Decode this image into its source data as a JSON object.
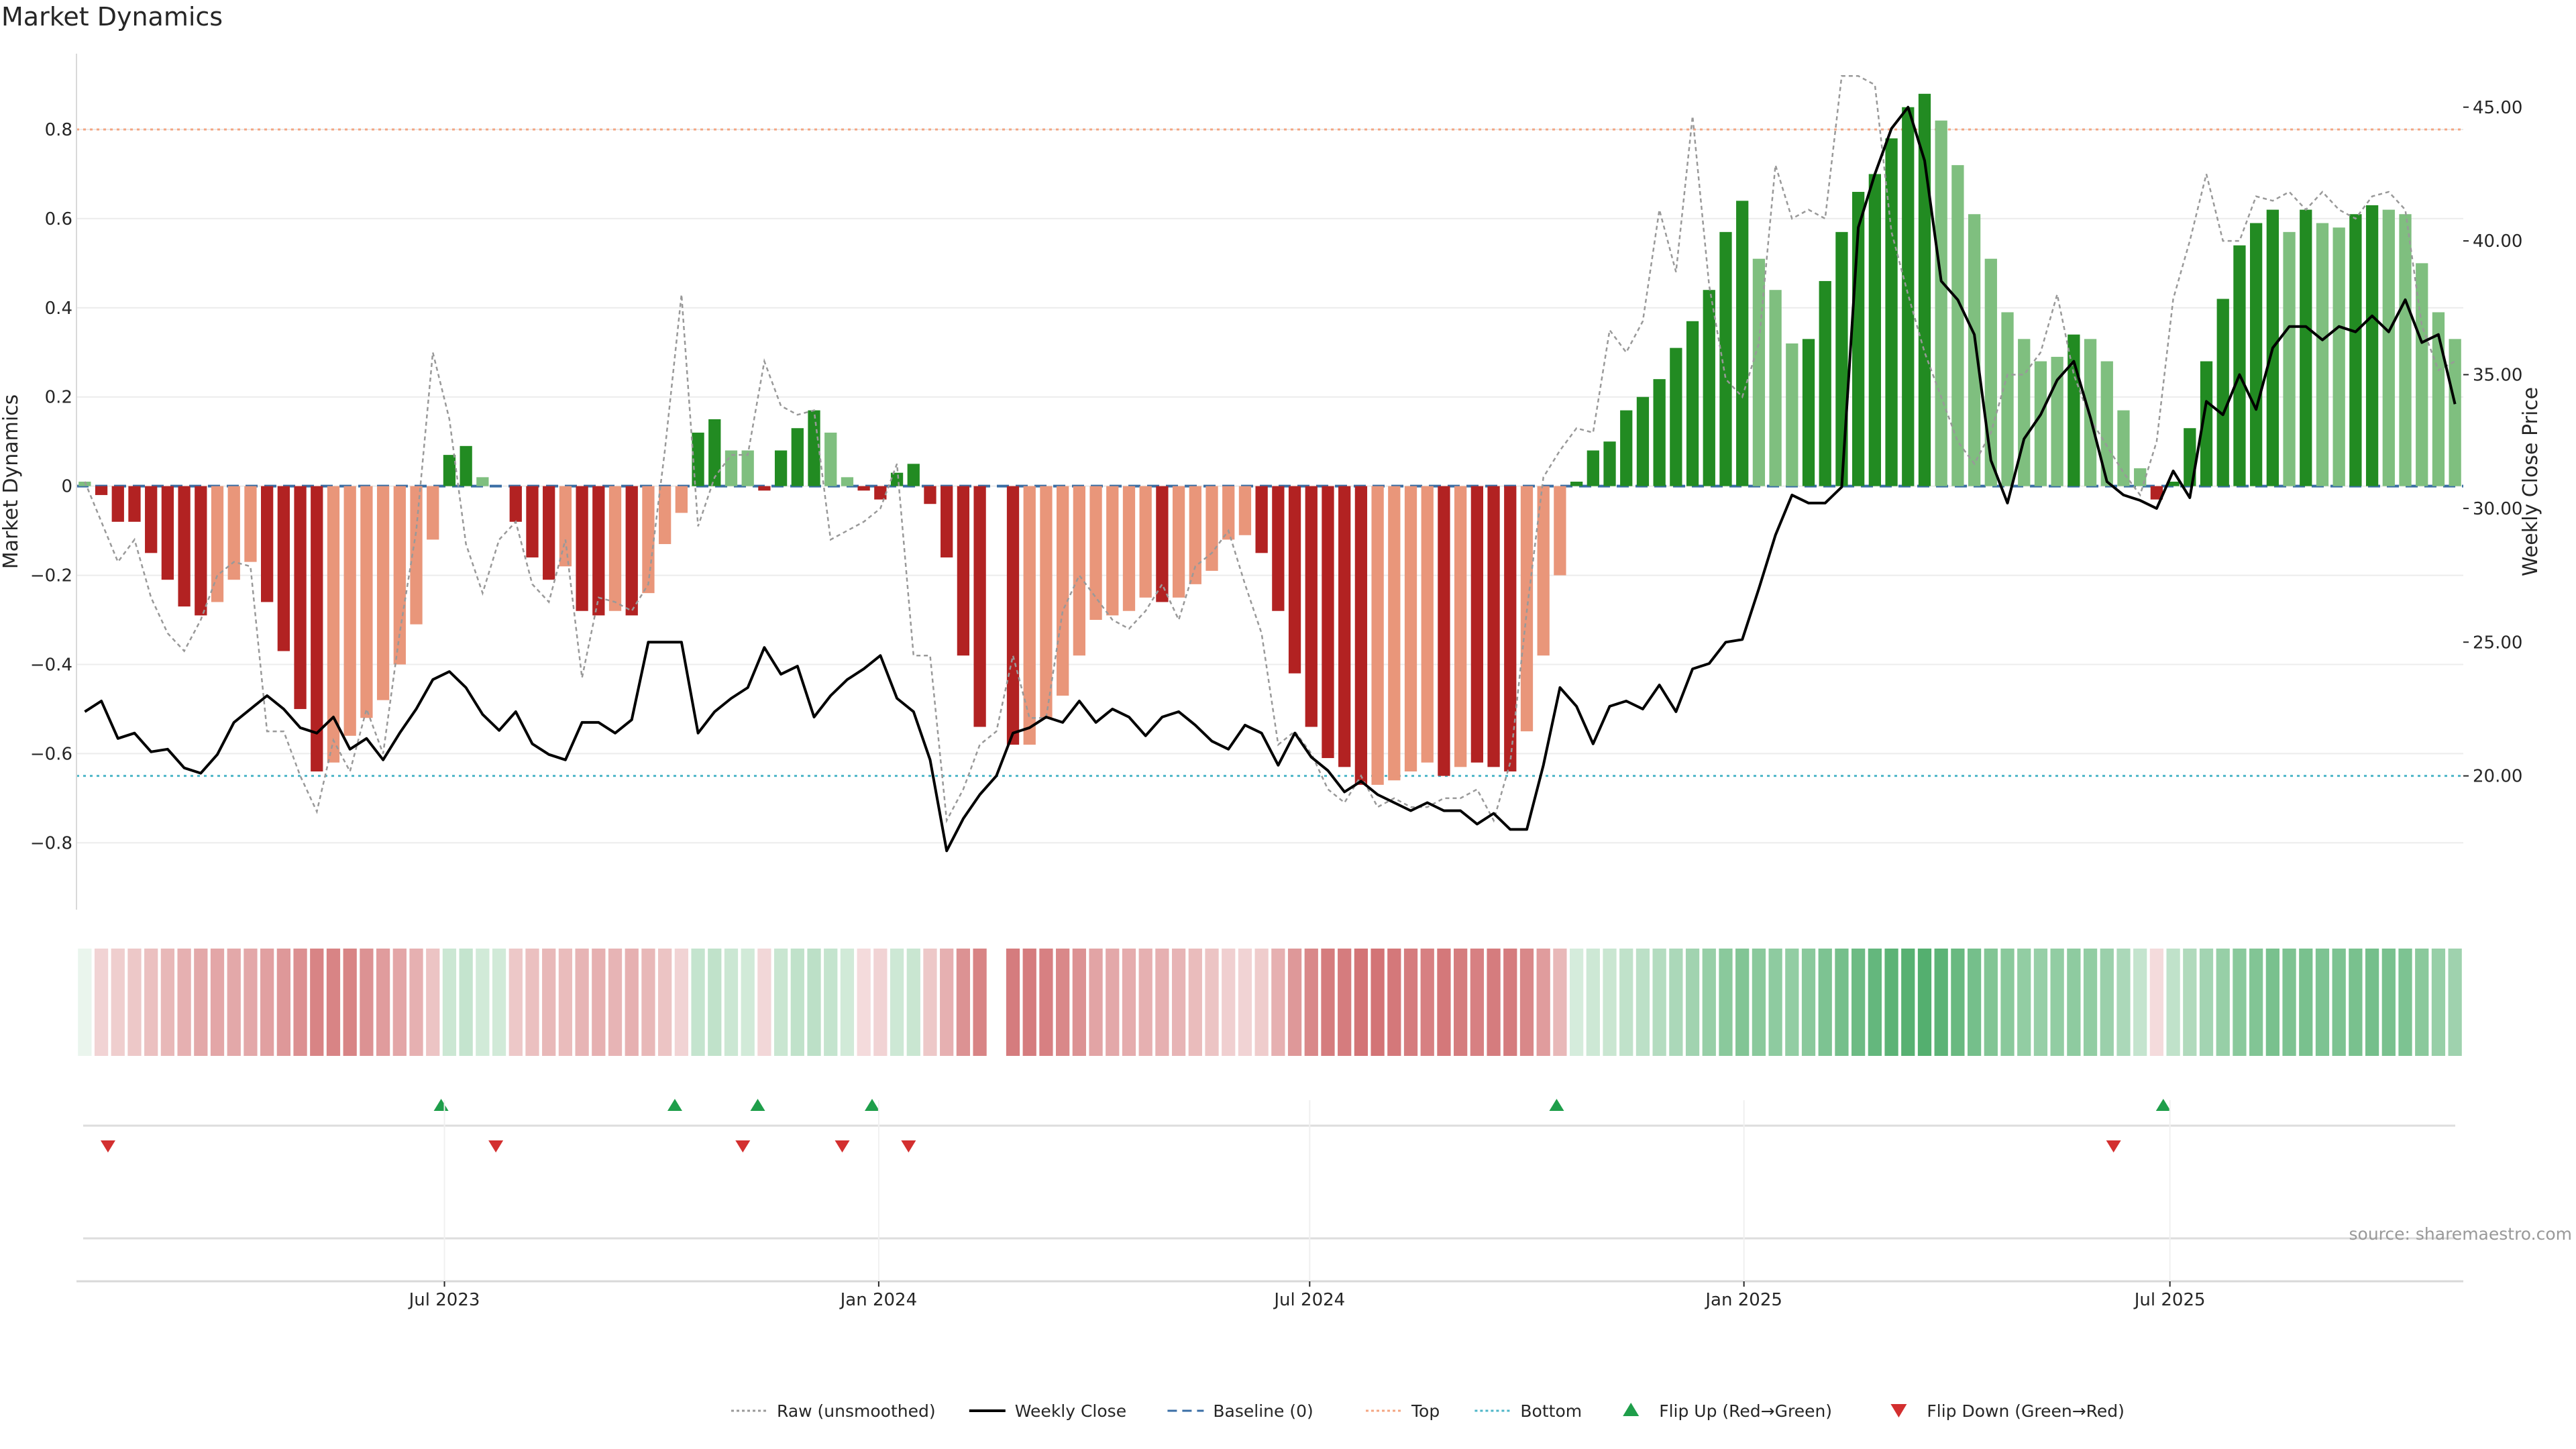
{
  "chart_data": {
    "type": "bar+line",
    "title": "Market Dynamics",
    "ylabel_left": "Market Dynamics",
    "ylabel_right": "Weekly Close Price",
    "source": "source: sharemaestro.com",
    "ylim_left": [
      -0.95,
      0.97
    ],
    "ylim_right": [
      15.0,
      47.0
    ],
    "yticks_left": [
      {
        "v": 0.8,
        "label": "0.8"
      },
      {
        "v": 0.6,
        "label": "0.6"
      },
      {
        "v": 0.4,
        "label": "0.4"
      },
      {
        "v": 0.2,
        "label": "0.2"
      },
      {
        "v": 0,
        "label": "0"
      },
      {
        "v": -0.2,
        "label": "−0.2"
      },
      {
        "v": -0.4,
        "label": "−0.4"
      },
      {
        "v": -0.6,
        "label": "−0.6"
      },
      {
        "v": -0.8,
        "label": "−0.8"
      }
    ],
    "yticks_right": [
      {
        "v": 45,
        "label": "45.00"
      },
      {
        "v": 40,
        "label": "40.00"
      },
      {
        "v": 35,
        "label": "35.00"
      },
      {
        "v": 30,
        "label": "30.00"
      },
      {
        "v": 25,
        "label": "25.00"
      },
      {
        "v": 20,
        "label": "20.00"
      }
    ],
    "xticks": [
      {
        "week": 21.7,
        "label": "Jul 2023"
      },
      {
        "week": 47.9,
        "label": "Jan 2024"
      },
      {
        "week": 73.9,
        "label": "Jul 2024"
      },
      {
        "week": 100.1,
        "label": "Jan 2025"
      },
      {
        "week": 125.8,
        "label": "Jul 2025"
      }
    ],
    "top_line": 0.8,
    "bottom_line": -0.65,
    "baseline": 0,
    "colors": {
      "bull_strong": "#228B22",
      "bull_weak": "#7FBF7F",
      "bear_strong": "#B22222",
      "bear_weak": "#E9967A",
      "raw": "#999999",
      "close": "#000000",
      "baseline": "#3A6EA5",
      "top": "#F4A582",
      "bottom": "#4DB6C8",
      "flip_up": "#1E9E4A",
      "flip_down": "#D32F2F"
    },
    "bars": [
      0.01,
      -0.02,
      -0.08,
      -0.08,
      -0.15,
      -0.21,
      -0.27,
      -0.29,
      -0.26,
      -0.21,
      -0.17,
      -0.26,
      -0.37,
      -0.5,
      -0.64,
      -0.62,
      -0.56,
      -0.52,
      -0.48,
      -0.4,
      -0.31,
      -0.12,
      0.07,
      0.09,
      0.02,
      0.0,
      -0.08,
      -0.16,
      -0.21,
      -0.18,
      -0.28,
      -0.29,
      -0.28,
      -0.29,
      -0.24,
      -0.13,
      -0.06,
      0.12,
      0.15,
      0.08,
      0.08,
      -0.01,
      0.08,
      0.13,
      0.17,
      0.12,
      0.02,
      -0.01,
      -0.03,
      0.03,
      0.05,
      -0.04,
      -0.16,
      -0.38,
      -0.54,
      0.0,
      -0.58,
      -0.58,
      -0.52,
      -0.47,
      -0.38,
      -0.3,
      -0.29,
      -0.28,
      -0.25,
      -0.26,
      -0.25,
      -0.22,
      -0.19,
      -0.12,
      -0.11,
      -0.15,
      -0.28,
      -0.42,
      -0.54,
      -0.61,
      -0.63,
      -0.67,
      -0.67,
      -0.66,
      -0.64,
      -0.62,
      -0.65,
      -0.63,
      -0.62,
      -0.63,
      -0.64,
      -0.55,
      -0.38,
      -0.2,
      0.01,
      0.08,
      0.1,
      0.17,
      0.2,
      0.24,
      0.31,
      0.37,
      0.44,
      0.57,
      0.64,
      0.51,
      0.44,
      0.32,
      0.33,
      0.46,
      0.57,
      0.66,
      0.7,
      0.78,
      0.85,
      0.88,
      0.82,
      0.72,
      0.61,
      0.51,
      0.39,
      0.33,
      0.28,
      0.29,
      0.34,
      0.33,
      0.28,
      0.17,
      0.04,
      -0.03,
      0.01,
      0.13,
      0.28,
      0.42,
      0.54,
      0.59,
      0.62,
      0.57,
      0.62,
      0.59,
      0.58,
      0.61,
      0.63,
      0.62,
      0.61,
      0.5,
      0.39,
      0.33
    ],
    "bar_tone": [
      "weak",
      "strong",
      "strong",
      "strong",
      "strong",
      "strong",
      "strong",
      "strong",
      "weak",
      "weak",
      "weak",
      "strong",
      "strong",
      "strong",
      "strong",
      "weak",
      "weak",
      "weak",
      "weak",
      "weak",
      "weak",
      "weak",
      "strong",
      "strong",
      "weak",
      "weak",
      "strong",
      "strong",
      "strong",
      "weak",
      "strong",
      "strong",
      "weak",
      "strong",
      "weak",
      "weak",
      "weak",
      "strong",
      "strong",
      "weak",
      "weak",
      "strong",
      "strong",
      "strong",
      "strong",
      "weak",
      "weak",
      "strong",
      "strong",
      "strong",
      "strong",
      "strong",
      "strong",
      "strong",
      "strong",
      "strong",
      "strong",
      "weak",
      "weak",
      "weak",
      "weak",
      "weak",
      "weak",
      "weak",
      "weak",
      "strong",
      "weak",
      "weak",
      "weak",
      "weak",
      "weak",
      "strong",
      "strong",
      "strong",
      "strong",
      "strong",
      "strong",
      "strong",
      "weak",
      "weak",
      "weak",
      "weak",
      "strong",
      "weak",
      "strong",
      "strong",
      "strong",
      "weak",
      "weak",
      "weak",
      "strong",
      "strong",
      "strong",
      "strong",
      "strong",
      "strong",
      "strong",
      "strong",
      "strong",
      "strong",
      "strong",
      "weak",
      "weak",
      "weak",
      "strong",
      "strong",
      "strong",
      "strong",
      "strong",
      "strong",
      "strong",
      "strong",
      "weak",
      "weak",
      "weak",
      "weak",
      "weak",
      "weak",
      "weak",
      "weak",
      "strong",
      "weak",
      "weak",
      "weak",
      "weak",
      "strong",
      "strong",
      "strong",
      "strong",
      "strong",
      "strong",
      "strong",
      "strong",
      "weak",
      "strong",
      "weak",
      "weak",
      "strong",
      "strong",
      "weak",
      "weak",
      "weak",
      "weak",
      "weak"
    ],
    "heat_strength": [
      0.1,
      0.22,
      0.25,
      0.28,
      0.32,
      0.36,
      0.4,
      0.44,
      0.45,
      0.44,
      0.44,
      0.48,
      0.52,
      0.56,
      0.62,
      0.62,
      0.62,
      0.55,
      0.5,
      0.45,
      0.4,
      0.3,
      0.25,
      0.28,
      0.22,
      0.22,
      0.28,
      0.32,
      0.36,
      0.34,
      0.38,
      0.4,
      0.38,
      0.4,
      0.36,
      0.3,
      0.22,
      0.28,
      0.3,
      0.25,
      0.22,
      0.2,
      0.26,
      0.3,
      0.32,
      0.28,
      0.22,
      0.18,
      0.22,
      0.24,
      0.26,
      0.28,
      0.4,
      0.55,
      0.62,
      0.0,
      0.66,
      0.66,
      0.64,
      0.6,
      0.55,
      0.46,
      0.44,
      0.42,
      0.4,
      0.4,
      0.38,
      0.34,
      0.3,
      0.24,
      0.22,
      0.26,
      0.4,
      0.52,
      0.6,
      0.66,
      0.66,
      0.7,
      0.7,
      0.68,
      0.66,
      0.64,
      0.68,
      0.66,
      0.64,
      0.66,
      0.66,
      0.6,
      0.5,
      0.36,
      0.2,
      0.24,
      0.26,
      0.3,
      0.32,
      0.36,
      0.4,
      0.45,
      0.5,
      0.56,
      0.6,
      0.56,
      0.54,
      0.52,
      0.56,
      0.62,
      0.66,
      0.7,
      0.74,
      0.78,
      0.8,
      0.82,
      0.78,
      0.72,
      0.66,
      0.6,
      0.56,
      0.52,
      0.5,
      0.52,
      0.54,
      0.52,
      0.48,
      0.4,
      0.28,
      0.18,
      0.3,
      0.38,
      0.44,
      0.5,
      0.56,
      0.6,
      0.64,
      0.62,
      0.64,
      0.62,
      0.62,
      0.64,
      0.66,
      0.64,
      0.62,
      0.56,
      0.5,
      0.46
    ],
    "raw": [
      0.01,
      -0.08,
      -0.17,
      -0.12,
      -0.25,
      -0.33,
      -0.37,
      -0.3,
      -0.2,
      -0.17,
      -0.18,
      -0.55,
      -0.55,
      -0.65,
      -0.73,
      -0.57,
      -0.64,
      -0.5,
      -0.6,
      -0.33,
      -0.1,
      0.3,
      0.15,
      -0.13,
      -0.24,
      -0.12,
      -0.08,
      -0.22,
      -0.26,
      -0.12,
      -0.43,
      -0.25,
      -0.26,
      -0.28,
      -0.22,
      0.08,
      0.43,
      -0.09,
      0.02,
      0.07,
      0.07,
      0.28,
      0.18,
      0.16,
      0.17,
      -0.12,
      -0.1,
      -0.08,
      -0.05,
      0.05,
      -0.38,
      -0.38,
      -0.75,
      -0.68,
      -0.58,
      -0.55,
      -0.38,
      -0.52,
      -0.52,
      -0.28,
      -0.2,
      -0.25,
      -0.3,
      -0.32,
      -0.28,
      -0.22,
      -0.3,
      -0.18,
      -0.15,
      -0.1,
      -0.22,
      -0.33,
      -0.58,
      -0.55,
      -0.6,
      -0.68,
      -0.71,
      -0.65,
      -0.72,
      -0.7,
      -0.72,
      -0.72,
      -0.7,
      -0.7,
      -0.68,
      -0.75,
      -0.62,
      -0.28,
      0.02,
      0.08,
      0.13,
      0.12,
      0.35,
      0.3,
      0.37,
      0.62,
      0.48,
      0.83,
      0.45,
      0.24,
      0.2,
      0.32,
      0.72,
      0.6,
      0.62,
      0.6,
      0.92,
      0.92,
      0.9,
      0.57,
      0.43,
      0.3,
      0.2,
      0.1,
      0.05,
      0.12,
      0.25,
      0.25,
      0.3,
      0.43,
      0.25,
      0.15,
      0.09,
      0.03,
      -0.02,
      0.1,
      0.42,
      0.55,
      0.7,
      0.55,
      0.55,
      0.65,
      0.64,
      0.66,
      0.62,
      0.66,
      0.62,
      0.6,
      0.65,
      0.66,
      0.62,
      0.36,
      0.26,
      0.28
    ],
    "close": [
      22.4,
      22.8,
      21.4,
      21.6,
      20.9,
      21.0,
      20.3,
      20.1,
      20.8,
      22.0,
      22.5,
      23.0,
      22.5,
      21.8,
      21.6,
      22.2,
      21.0,
      21.4,
      20.6,
      21.6,
      22.5,
      23.6,
      23.9,
      23.3,
      22.3,
      21.7,
      22.4,
      21.2,
      20.8,
      20.6,
      22.0,
      22.0,
      21.6,
      22.1,
      25.0,
      25.0,
      25.0,
      21.6,
      22.4,
      22.9,
      23.3,
      24.8,
      23.8,
      24.1,
      22.2,
      23.0,
      23.6,
      24.0,
      24.5,
      22.9,
      22.4,
      20.6,
      17.2,
      18.4,
      19.3,
      20.0,
      21.6,
      21.8,
      22.2,
      22.0,
      22.8,
      22.0,
      22.5,
      22.2,
      21.5,
      22.2,
      22.4,
      21.9,
      21.3,
      21.0,
      21.9,
      21.6,
      20.4,
      21.6,
      20.7,
      20.2,
      19.4,
      19.8,
      19.3,
      19.0,
      18.7,
      19.0,
      18.7,
      18.7,
      18.2,
      18.6,
      18.0,
      18.0,
      20.4,
      23.3,
      22.6,
      21.2,
      22.6,
      22.8,
      22.5,
      23.4,
      22.4,
      24.0,
      24.2,
      25.0,
      25.1,
      27.0,
      29.0,
      30.5,
      30.2,
      30.2,
      30.8,
      40.5,
      42.5,
      44.2,
      45.0,
      43.0,
      38.5,
      37.8,
      36.5,
      31.8,
      30.2,
      32.6,
      33.5,
      34.8,
      35.5,
      33.4,
      31.0,
      30.5,
      30.3,
      30.0,
      31.4,
      30.4,
      34.0,
      33.5,
      35.0,
      33.7,
      36.0,
      36.8,
      36.8,
      36.3,
      36.8,
      36.6,
      37.2,
      36.6,
      37.8,
      36.2,
      36.5,
      33.9
    ],
    "flip_up_weeks": [
      21.5,
      35.6,
      40.6,
      47.5,
      88.8,
      125.4
    ],
    "flip_down_weeks": [
      1.4,
      24.8,
      39.7,
      45.7,
      49.7,
      122.4
    ],
    "legend": [
      {
        "label": "Raw (unsmoothed)",
        "kind": "dotted",
        "color": "#999999"
      },
      {
        "label": "Weekly Close",
        "kind": "solid",
        "color": "#000000"
      },
      {
        "label": "Baseline (0)",
        "kind": "dashed",
        "color": "#3A6EA5"
      },
      {
        "label": "Top",
        "kind": "dotted",
        "color": "#F4A582"
      },
      {
        "label": "Bottom",
        "kind": "dotted",
        "color": "#4DB6C8"
      },
      {
        "label": "Flip Up (Red→Green)",
        "kind": "tri-up",
        "color": "#1E9E4A"
      },
      {
        "label": "Flip Down (Green→Red)",
        "kind": "tri-down",
        "color": "#D32F2F"
      }
    ]
  }
}
